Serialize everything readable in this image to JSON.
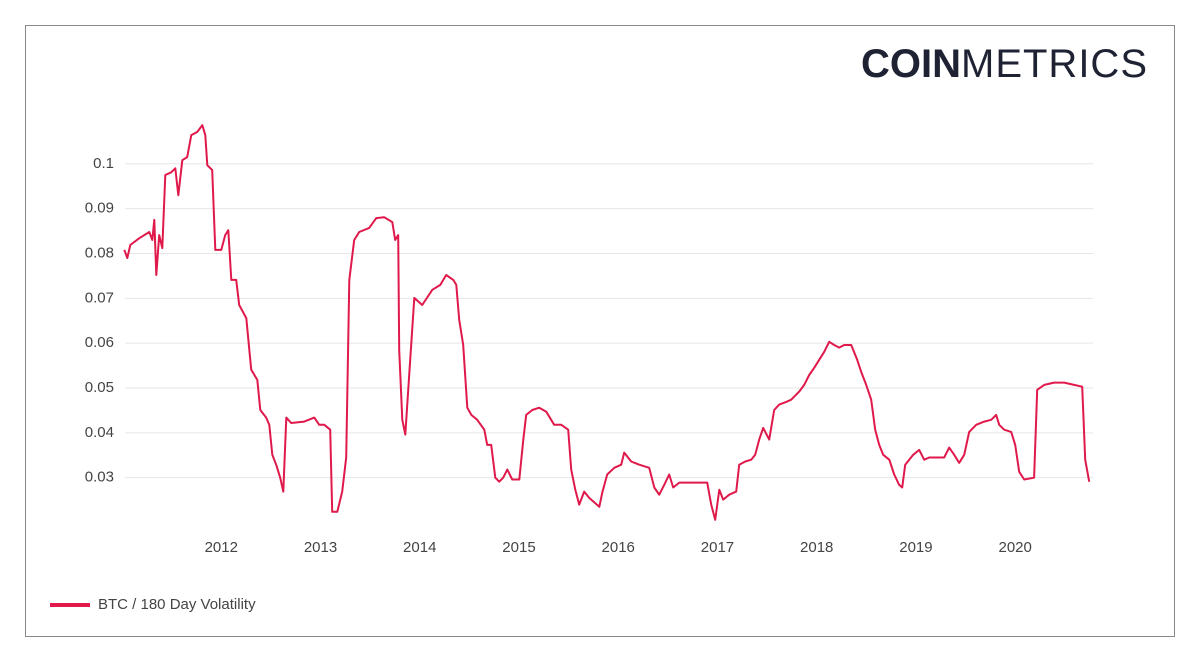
{
  "logo": {
    "strong": "COIN",
    "light": "METRICS"
  },
  "chart_data": {
    "type": "line",
    "x": [
      2011.023,
      2011.053,
      2011.083,
      2011.174,
      2011.275,
      2011.305,
      2011.325,
      2011.345,
      2011.375,
      2011.406,
      2011.436,
      2011.496,
      2011.537,
      2011.567,
      2011.607,
      2011.657,
      2011.698,
      2011.758,
      2011.809,
      2011.839,
      2011.859,
      2011.909,
      2011.94,
      2012.0,
      2012.04,
      2012.071,
      2012.101,
      2012.151,
      2012.181,
      2012.252,
      2012.302,
      2012.363,
      2012.393,
      2012.453,
      2012.484,
      2012.514,
      2012.554,
      2012.594,
      2012.625,
      2012.655,
      2012.705,
      2012.836,
      2012.937,
      2012.987,
      2013.038,
      2013.098,
      2013.118,
      2013.169,
      2013.219,
      2013.259,
      2013.29,
      2013.34,
      2013.39,
      2013.491,
      2013.562,
      2013.642,
      2013.723,
      2013.753,
      2013.783,
      2013.793,
      2013.824,
      2013.854,
      2013.894,
      2013.945,
      2014.025,
      2014.126,
      2014.207,
      2014.267,
      2014.338,
      2014.368,
      2014.398,
      2014.438,
      2014.479,
      2014.519,
      2014.579,
      2014.65,
      2014.68,
      2014.72,
      2014.761,
      2014.801,
      2014.841,
      2014.882,
      2014.932,
      2015.003,
      2015.043,
      2015.073,
      2015.134,
      2015.204,
      2015.275,
      2015.355,
      2015.426,
      2015.496,
      2015.526,
      2015.567,
      2015.607,
      2015.657,
      2015.708,
      2015.809,
      2015.839,
      2015.889,
      2015.96,
      2016.03,
      2016.06,
      2016.131,
      2016.212,
      2016.312,
      2016.363,
      2016.413,
      2016.463,
      2016.514,
      2016.554,
      2016.615,
      2016.816,
      2016.897,
      2016.937,
      2016.977,
      2017.018,
      2017.058,
      2017.118,
      2017.189,
      2017.219,
      2017.28,
      2017.34,
      2017.38,
      2017.421,
      2017.461,
      2017.521,
      2017.572,
      2017.622,
      2017.693,
      2017.743,
      2017.824,
      2017.874,
      2017.924,
      2017.975,
      2018.025,
      2018.076,
      2018.126,
      2018.176,
      2018.227,
      2018.277,
      2018.348,
      2018.408,
      2018.448,
      2018.499,
      2018.549,
      2018.589,
      2018.63,
      2018.67,
      2018.731,
      2018.781,
      2018.831,
      2018.861,
      2018.892,
      2018.932,
      2018.972,
      2019.033,
      2019.083,
      2019.134,
      2019.285,
      2019.335,
      2019.385,
      2019.436,
      2019.486,
      2019.537,
      2019.607,
      2019.688,
      2019.758,
      2019.809,
      2019.839,
      2019.889,
      2019.96,
      2020.0,
      2020.04,
      2020.091,
      2020.191,
      2020.222,
      2020.292,
      2020.393,
      2020.494,
      2020.594,
      2020.675,
      2020.705,
      2020.746
    ],
    "series": [
      {
        "name": "BTC / 180 Day Volatility",
        "color": "#e0194b",
        "values": [
          0.0808,
          0.079,
          0.0819,
          0.0834,
          0.0848,
          0.083,
          0.0875,
          0.0752,
          0.0841,
          0.0812,
          0.0975,
          0.0981,
          0.099,
          0.093,
          0.1008,
          0.1015,
          0.1064,
          0.1071,
          0.1086,
          0.1064,
          0.0997,
          0.0986,
          0.0808,
          0.0808,
          0.0841,
          0.0852,
          0.0741,
          0.0741,
          0.0685,
          0.0656,
          0.0541,
          0.0518,
          0.0451,
          0.0434,
          0.0418,
          0.0351,
          0.0329,
          0.03,
          0.0269,
          0.0434,
          0.0422,
          0.0425,
          0.0434,
          0.0418,
          0.0418,
          0.0407,
          0.0224,
          0.0224,
          0.0269,
          0.0345,
          0.0741,
          0.083,
          0.0848,
          0.0857,
          0.0879,
          0.0881,
          0.087,
          0.083,
          0.0841,
          0.0585,
          0.0429,
          0.0396,
          0.0529,
          0.0701,
          0.0685,
          0.0719,
          0.073,
          0.0752,
          0.0741,
          0.073,
          0.0652,
          0.0596,
          0.0456,
          0.044,
          0.0429,
          0.0407,
          0.0373,
          0.0373,
          0.03,
          0.0291,
          0.03,
          0.0318,
          0.0296,
          0.0296,
          0.0385,
          0.044,
          0.0451,
          0.0456,
          0.0447,
          0.0418,
          0.0418,
          0.0407,
          0.0318,
          0.0273,
          0.024,
          0.0269,
          0.0255,
          0.0235,
          0.0267,
          0.0307,
          0.0322,
          0.0329,
          0.0356,
          0.0336,
          0.0329,
          0.0322,
          0.0278,
          0.0262,
          0.0284,
          0.0307,
          0.0278,
          0.0289,
          0.0289,
          0.0289,
          0.024,
          0.0206,
          0.0273,
          0.0251,
          0.0262,
          0.0269,
          0.0329,
          0.0336,
          0.034,
          0.0351,
          0.0385,
          0.0411,
          0.0385,
          0.0451,
          0.0463,
          0.0469,
          0.0474,
          0.0492,
          0.0507,
          0.0529,
          0.0545,
          0.0563,
          0.0581,
          0.0603,
          0.0596,
          0.059,
          0.0596,
          0.0596,
          0.0563,
          0.0536,
          0.0507,
          0.0474,
          0.0407,
          0.0373,
          0.0351,
          0.034,
          0.0307,
          0.0284,
          0.0278,
          0.0329,
          0.034,
          0.0351,
          0.0362,
          0.034,
          0.0345,
          0.0345,
          0.0367,
          0.0351,
          0.0333,
          0.0351,
          0.0402,
          0.0418,
          0.0425,
          0.0429,
          0.044,
          0.0418,
          0.0407,
          0.0402,
          0.0373,
          0.0313,
          0.0296,
          0.03,
          0.0496,
          0.0507,
          0.0512,
          0.0512,
          0.0507,
          0.0503,
          0.034,
          0.0291
        ]
      }
    ],
    "xlim": [
      2011.03,
      2020.78
    ],
    "xticks": [
      2012,
      2013,
      2014,
      2015,
      2016,
      2017,
      2018,
      2019,
      2020
    ],
    "ylim": [
      0.019,
      0.112
    ],
    "yticks": [
      0.03,
      0.04,
      0.05,
      0.06,
      0.07,
      0.08,
      0.09,
      0.1
    ],
    "grid": true,
    "legend": "bottom-left"
  }
}
